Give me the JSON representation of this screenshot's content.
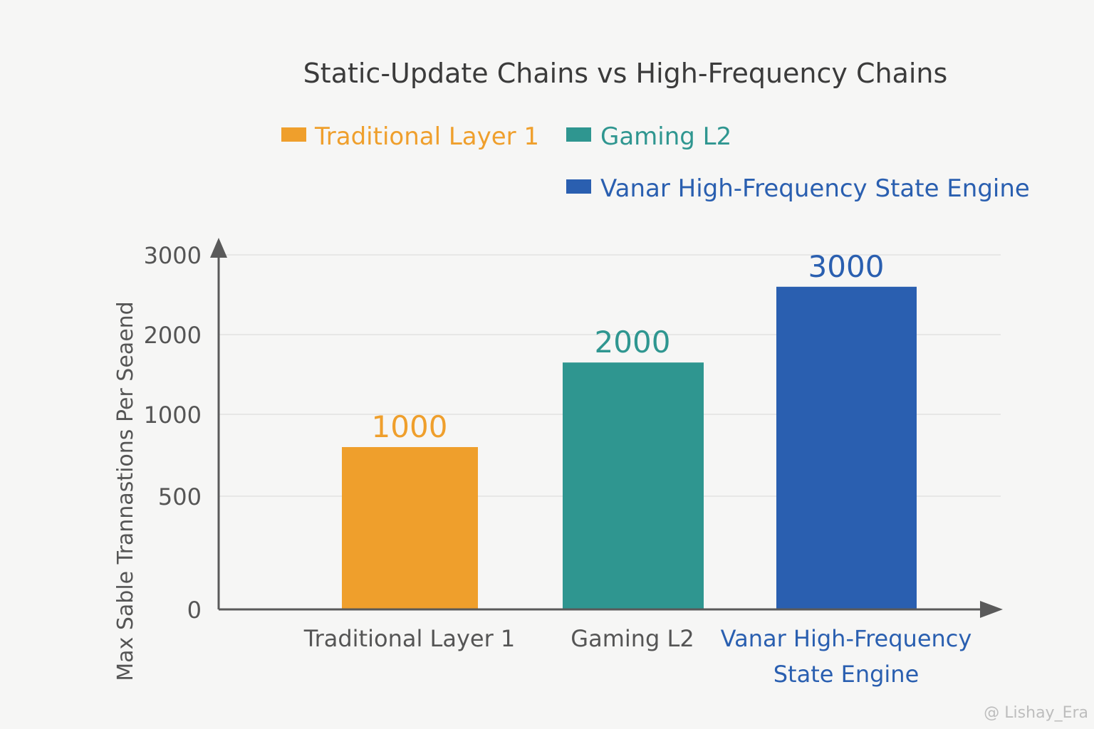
{
  "chart_data": {
    "type": "bar",
    "title": "Static-Update Chains vs High-Frequency Chains",
    "ylabel": "Max Sable Trannastions Per Seaend",
    "xlabel": "",
    "ylim": [
      0,
      3000
    ],
    "y_ticks": [
      "0",
      "500",
      "1000",
      "2000",
      "3000"
    ],
    "categories": [
      {
        "label": [
          "Traditional Layer 1"
        ],
        "value": 1000,
        "data_label": "1000",
        "color": "#ef9f2c",
        "label_color": "#555555",
        "bar_height_value": 800
      },
      {
        "label": [
          "Gaming L2"
        ],
        "value": 2000,
        "data_label": "2000",
        "color": "#2f9690",
        "label_color": "#555555",
        "bar_height_value": 1650
      },
      {
        "label": [
          "Vanar High-Frequency",
          "State Engine"
        ],
        "value": 3000,
        "data_label": "3000",
        "color": "#2a5fb0",
        "label_color": "#2a5fb0",
        "bar_height_value": 2600
      }
    ],
    "legend": [
      {
        "label": "Traditional Layer 1",
        "color": "#ef9f2c"
      },
      {
        "label": "Gaming L2",
        "color": "#2f9690"
      },
      {
        "label": "Vanar High-Frequency State Engine",
        "color": "#2a5fb0"
      }
    ],
    "legend_position": "top",
    "grid": true
  },
  "watermark": "@ Lishay_Era"
}
